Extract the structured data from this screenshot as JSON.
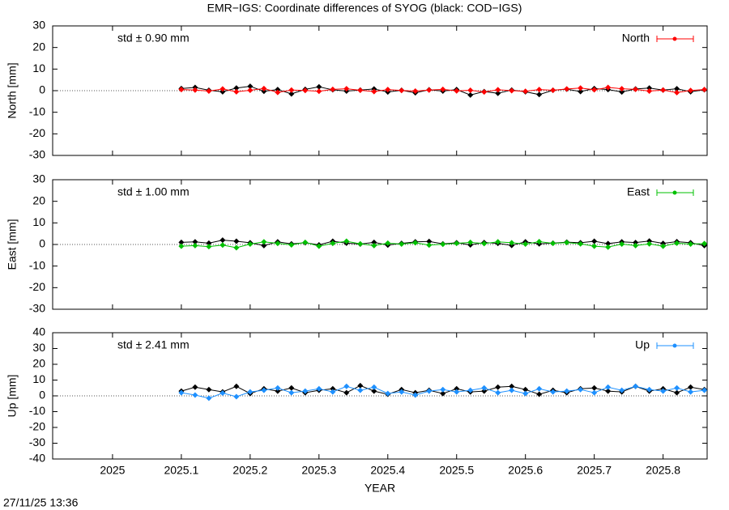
{
  "title": "EMR−IGS: Coordinate differences of SYOG (black: COD−IGS)",
  "timestamp": "27/11/25 13:36",
  "chart_data": [
    {
      "type": "line",
      "ylabel": "North [mm]",
      "annotation": "std ± 0.90 mm",
      "xlim": [
        2024.913,
        2025.864
      ],
      "xticks": [
        2025,
        2025.1,
        2025.2,
        2025.3,
        2025.4,
        2025.5,
        2025.6,
        2025.7,
        2025.8
      ],
      "ylim": [
        -30,
        30
      ],
      "yticks": [
        -30,
        -20,
        -10,
        0,
        10,
        20,
        30
      ],
      "legend": "top-right",
      "x": [
        2025.1,
        2025.12,
        2025.14,
        2025.16,
        2025.18,
        2025.2,
        2025.22,
        2025.24,
        2025.26,
        2025.28,
        2025.3,
        2025.32,
        2025.34,
        2025.36,
        2025.38,
        2025.4,
        2025.42,
        2025.44,
        2025.46,
        2025.48,
        2025.5,
        2025.52,
        2025.54,
        2025.56,
        2025.58,
        2025.6,
        2025.62,
        2025.64,
        2025.66,
        2025.68,
        2025.7,
        2025.72,
        2025.74,
        2025.76,
        2025.78,
        2025.8,
        2025.82,
        2025.84,
        2025.86
      ],
      "series": [
        {
          "color": "#000000",
          "values": [
            1.0,
            1.5,
            0.2,
            -0.5,
            1.2,
            2.0,
            -0.3,
            0.5,
            -1.5,
            0.6,
            1.8,
            0.4,
            -0.2,
            0.3,
            0.8,
            -0.6,
            0.2,
            -1.0,
            0.4,
            -0.2,
            0.5,
            -2.0,
            -0.4,
            -1.2,
            0.3,
            -0.5,
            -1.8,
            0.2,
            0.7,
            -0.4,
            1.0,
            0.5,
            -0.6,
            0.8,
            1.2,
            0.3,
            0.9,
            -0.5,
            0.4
          ]
        },
        {
          "name": "North",
          "color": "#ff0000",
          "values": [
            0.5,
            0.3,
            -0.2,
            0.8,
            -0.5,
            0.2,
            1.0,
            -0.8,
            0.3,
            0.1,
            -0.3,
            0.6,
            0.9,
            0.2,
            -0.4,
            0.5,
            0.1,
            -0.2,
            0.3,
            0.6,
            -0.1,
            0.2,
            -0.6,
            0.4,
            0.0,
            -0.3,
            0.5,
            0.2,
            0.8,
            1.2,
            0.4,
            1.5,
            0.9,
            0.6,
            -0.2,
            0.3,
            -0.9,
            0.1,
            0.5
          ]
        }
      ]
    },
    {
      "type": "line",
      "ylabel": "East [mm]",
      "annotation": "std ± 1.00 mm",
      "xlim": [
        2024.913,
        2025.864
      ],
      "xticks": [
        2025,
        2025.1,
        2025.2,
        2025.3,
        2025.4,
        2025.5,
        2025.6,
        2025.7,
        2025.8
      ],
      "ylim": [
        -30,
        30
      ],
      "yticks": [
        -30,
        -20,
        -10,
        0,
        10,
        20,
        30
      ],
      "legend": "top-right",
      "x": [
        2025.1,
        2025.12,
        2025.14,
        2025.16,
        2025.18,
        2025.2,
        2025.22,
        2025.24,
        2025.26,
        2025.28,
        2025.3,
        2025.32,
        2025.34,
        2025.36,
        2025.38,
        2025.4,
        2025.42,
        2025.44,
        2025.46,
        2025.48,
        2025.5,
        2025.52,
        2025.54,
        2025.56,
        2025.58,
        2025.6,
        2025.62,
        2025.64,
        2025.66,
        2025.68,
        2025.7,
        2025.72,
        2025.74,
        2025.76,
        2025.78,
        2025.8,
        2025.82,
        2025.84,
        2025.86
      ],
      "series": [
        {
          "color": "#000000",
          "values": [
            1.0,
            1.2,
            0.6,
            2.0,
            1.5,
            0.8,
            -0.5,
            1.2,
            0.3,
            0.8,
            -0.2,
            1.5,
            0.6,
            0.2,
            1.0,
            -0.3,
            0.5,
            1.2,
            1.4,
            0.3,
            0.8,
            -0.2,
            0.9,
            0.5,
            -0.4,
            1.2,
            0.3,
            0.6,
            1.1,
            0.8,
            1.5,
            0.4,
            1.2,
            0.9,
            1.6,
            0.5,
            1.3,
            0.8,
            -0.5
          ]
        },
        {
          "name": "East",
          "color": "#00c000",
          "values": [
            -0.8,
            -0.5,
            -1.0,
            -0.3,
            -1.5,
            0.2,
            1.2,
            0.5,
            -0.2,
            1.0,
            -0.8,
            0.5,
            1.5,
            0.3,
            -0.5,
            0.6,
            0.2,
            0.8,
            -0.3,
            0.1,
            0.5,
            1.0,
            0.4,
            1.2,
            0.8,
            0.2,
            1.3,
            0.5,
            0.9,
            0.3,
            -0.8,
            -1.2,
            0.2,
            -0.5,
            0.3,
            -0.8,
            0.6,
            0.2,
            0.4
          ]
        }
      ]
    },
    {
      "type": "line",
      "ylabel": "Up [mm]",
      "annotation": "std ± 2.41 mm",
      "xlabel": "YEAR",
      "xlim": [
        2024.913,
        2025.864
      ],
      "xticks": [
        2025,
        2025.1,
        2025.2,
        2025.3,
        2025.4,
        2025.5,
        2025.6,
        2025.7,
        2025.8
      ],
      "ylim": [
        -40,
        40
      ],
      "yticks": [
        -40,
        -30,
        -20,
        -10,
        0,
        10,
        20,
        30,
        40
      ],
      "legend": "top-right",
      "x": [
        2025.1,
        2025.12,
        2025.14,
        2025.16,
        2025.18,
        2025.2,
        2025.22,
        2025.24,
        2025.26,
        2025.28,
        2025.3,
        2025.32,
        2025.34,
        2025.36,
        2025.38,
        2025.4,
        2025.42,
        2025.44,
        2025.46,
        2025.48,
        2025.5,
        2025.52,
        2025.54,
        2025.56,
        2025.58,
        2025.6,
        2025.62,
        2025.64,
        2025.66,
        2025.68,
        2025.7,
        2025.72,
        2025.74,
        2025.76,
        2025.78,
        2025.8,
        2025.82,
        2025.84,
        2025.86
      ],
      "series": [
        {
          "color": "#000000",
          "values": [
            3.0,
            5.5,
            4.0,
            2.5,
            6.0,
            1.5,
            4.5,
            3.0,
            5.0,
            2.0,
            3.5,
            4.5,
            2.0,
            6.5,
            3.0,
            1.0,
            4.0,
            2.0,
            3.5,
            1.5,
            4.5,
            2.5,
            3.0,
            5.5,
            6.0,
            4.0,
            1.0,
            3.5,
            2.0,
            4.5,
            5.0,
            3.0,
            2.5,
            6.0,
            3.0,
            4.5,
            2.0,
            5.5,
            4.0
          ]
        },
        {
          "name": "Up",
          "color": "#1e90ff",
          "values": [
            2.0,
            0.5,
            -1.5,
            1.8,
            -0.5,
            2.5,
            3.5,
            5.0,
            2.0,
            3.0,
            4.5,
            2.5,
            6.0,
            3.5,
            5.5,
            1.5,
            2.5,
            0.5,
            3.0,
            4.0,
            2.5,
            3.5,
            5.0,
            2.0,
            3.5,
            1.5,
            4.5,
            2.5,
            3.0,
            4.0,
            2.0,
            5.5,
            3.5,
            6.0,
            4.0,
            3.0,
            5.0,
            2.5,
            3.5
          ]
        }
      ]
    }
  ]
}
